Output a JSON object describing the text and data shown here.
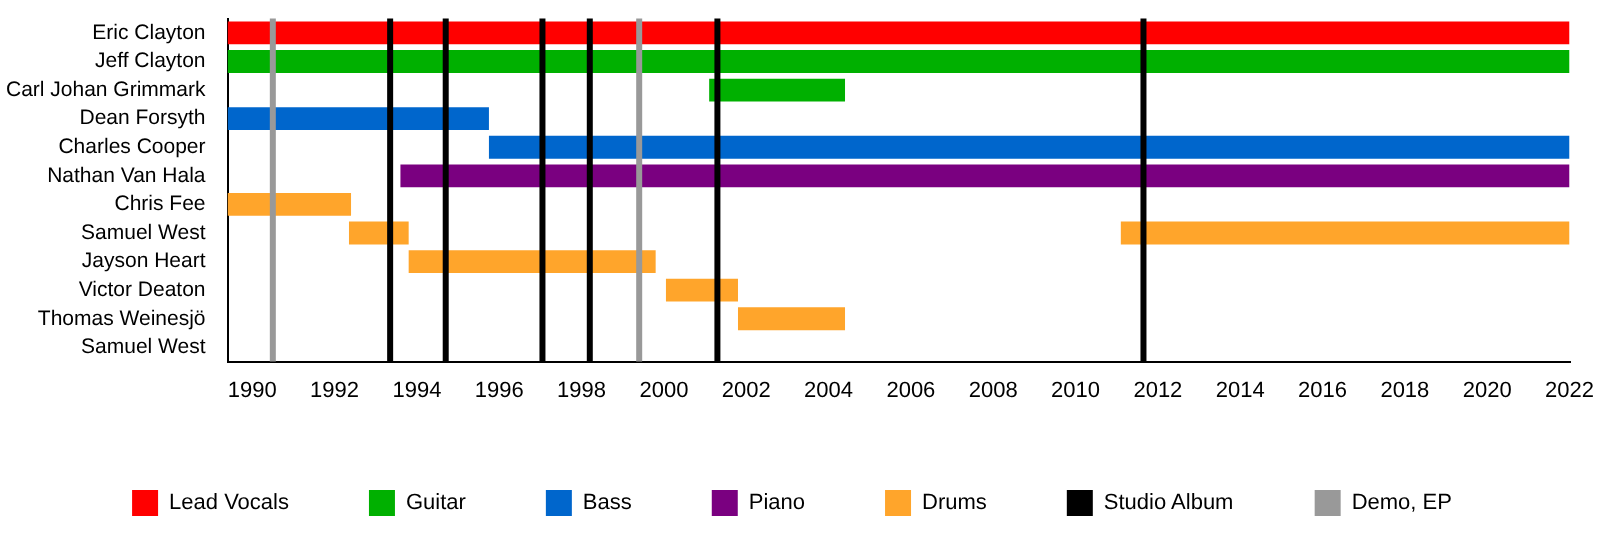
{
  "chart_data": {
    "type": "bar",
    "orientation": "horizontal",
    "categories": [
      "Eric Clayton",
      "Jeff Clayton",
      "Carl Johan Grimmark",
      "Dean Forsyth",
      "Charles Cooper",
      "Nathan Van Hala",
      "Chris Fee",
      "Samuel West",
      "Jayson Heart",
      "Victor Deaton",
      "Thomas Weinesjö",
      "Samuel West"
    ],
    "series": [
      {
        "name": "Lead Vocals",
        "color": "#ff0000",
        "base": [
          1989.4,
          null,
          null,
          null,
          null,
          null,
          null,
          null,
          null,
          null,
          null,
          null
        ],
        "values": [
          32.6,
          null,
          null,
          null,
          null,
          null,
          null,
          null,
          null,
          null,
          null,
          null
        ]
      },
      {
        "name": "Guitar",
        "color": "#00b000",
        "base": [
          null,
          1989.4,
          2001.1,
          null,
          null,
          null,
          null,
          null,
          null,
          null,
          null,
          null
        ],
        "values": [
          null,
          32.6,
          3.3,
          null,
          null,
          null,
          null,
          null,
          null,
          null,
          null,
          null
        ]
      },
      {
        "name": "Bass",
        "color": "#0066cc",
        "base": [
          null,
          null,
          null,
          1989.4,
          1995.75,
          null,
          null,
          null,
          null,
          null,
          null,
          null
        ],
        "values": [
          null,
          null,
          null,
          6.35,
          26.25,
          null,
          null,
          null,
          null,
          null,
          null,
          null
        ]
      },
      {
        "name": "Piano",
        "color": "#7a0080",
        "base": [
          null,
          null,
          null,
          null,
          null,
          1993.6,
          null,
          null,
          null,
          null,
          null,
          null
        ],
        "values": [
          null,
          null,
          null,
          null,
          null,
          28.4,
          null,
          null,
          null,
          null,
          null,
          null
        ]
      },
      {
        "name": "Drums",
        "color": "#ffa52b",
        "base": [
          null,
          null,
          null,
          null,
          null,
          null,
          1989.4,
          1992.35,
          1993.8,
          2000.05,
          2001.8,
          null
        ],
        "values": [
          null,
          null,
          null,
          null,
          null,
          null,
          3.0,
          1.45,
          6.0,
          1.75,
          2.6,
          null
        ]
      },
      {
        "color": "#ffa52b",
        "base": [
          null,
          null,
          null,
          null,
          null,
          null,
          null,
          2011.1,
          null,
          null,
          null,
          null
        ],
        "values": [
          null,
          null,
          null,
          null,
          null,
          null,
          null,
          10.9,
          null,
          null,
          null,
          null
        ]
      }
    ],
    "xlim": [
      1989.4,
      2022
    ],
    "xticks": [
      1990,
      1992,
      1994,
      1996,
      1998,
      2000,
      2002,
      2004,
      2006,
      2008,
      2010,
      2012,
      2014,
      2016,
      2018,
      2020,
      2022
    ],
    "ref_lines": [
      {
        "axis": "x",
        "value": 1990.5,
        "label": "Demo, EP",
        "color": "#999999"
      },
      {
        "axis": "x",
        "value": 1993.35,
        "label": "Studio Album",
        "color": "#000000"
      },
      {
        "axis": "x",
        "value": 1994.7,
        "color": "#000000"
      },
      {
        "axis": "x",
        "value": 1997.05,
        "color": "#000000"
      },
      {
        "axis": "x",
        "value": 1998.2,
        "color": "#000000"
      },
      {
        "axis": "x",
        "value": 1999.4,
        "color": "#999999"
      },
      {
        "axis": "x",
        "value": 2001.3,
        "color": "#000000"
      },
      {
        "axis": "x",
        "value": 2011.65,
        "color": "#000000"
      }
    ],
    "grid": false,
    "legend": "bottom"
  }
}
